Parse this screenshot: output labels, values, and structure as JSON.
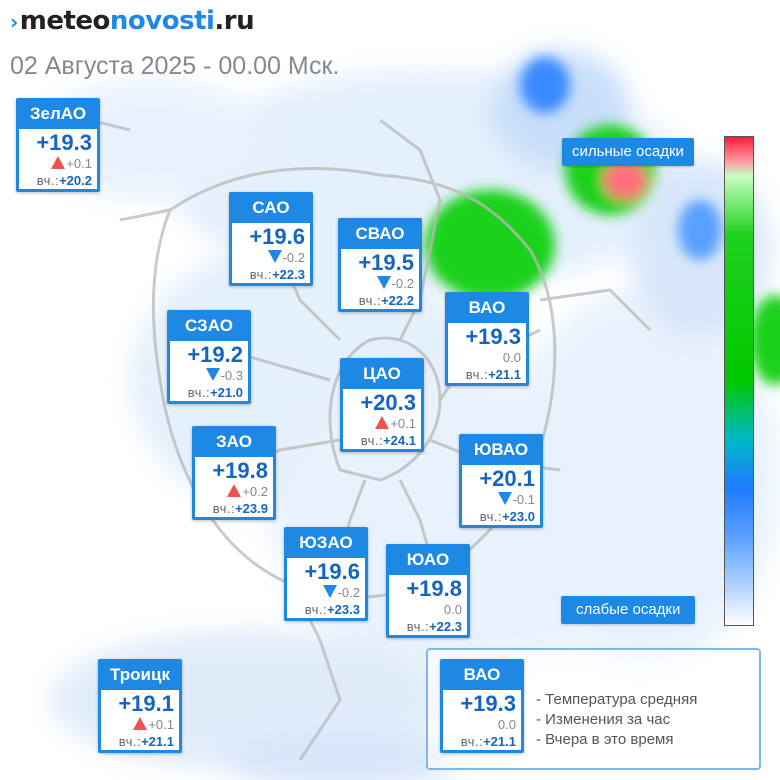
{
  "header": {
    "logo_part1": "meteo",
    "logo_part2": "novosti",
    "logo_part3": ".ru",
    "datetime": "02 Августа 2025 - 00.00 Мск."
  },
  "colors": {
    "accent": "#1e88e5",
    "up": "#ef5350",
    "down": "#1e88e5",
    "heavy": "#ff1a3c",
    "medium": "#00c800",
    "light": "#1e7bff"
  },
  "yesterday_label": "вч.:",
  "districts": [
    {
      "id": "zelao",
      "name": "ЗелАО",
      "temp": "+19.3",
      "change": "+0.1",
      "trend": "up",
      "yesterday": "+20.2"
    },
    {
      "id": "sao",
      "name": "САО",
      "temp": "+19.6",
      "change": "-0.2",
      "trend": "down",
      "yesterday": "+22.3"
    },
    {
      "id": "svao",
      "name": "СВАО",
      "temp": "+19.5",
      "change": "-0.2",
      "trend": "down",
      "yesterday": "+22.2"
    },
    {
      "id": "vao",
      "name": "ВАО",
      "temp": "+19.3",
      "change": "0.0",
      "trend": "none",
      "yesterday": "+21.1"
    },
    {
      "id": "szao",
      "name": "СЗАО",
      "temp": "+19.2",
      "change": "-0.3",
      "trend": "down",
      "yesterday": "+21.0"
    },
    {
      "id": "cao",
      "name": "ЦАО",
      "temp": "+20.3",
      "change": "+0.1",
      "trend": "up",
      "yesterday": "+24.1"
    },
    {
      "id": "zao",
      "name": "ЗАО",
      "temp": "+19.8",
      "change": "+0.2",
      "trend": "up",
      "yesterday": "+23.9"
    },
    {
      "id": "yuvao",
      "name": "ЮВАО",
      "temp": "+20.1",
      "change": "-0.1",
      "trend": "down",
      "yesterday": "+23.0"
    },
    {
      "id": "yuzao",
      "name": "ЮЗАО",
      "temp": "+19.6",
      "change": "-0.2",
      "trend": "down",
      "yesterday": "+23.3"
    },
    {
      "id": "yuao",
      "name": "ЮАО",
      "temp": "+19.8",
      "change": "0.0",
      "trend": "none",
      "yesterday": "+22.3"
    },
    {
      "id": "troitsk",
      "name": "Троицк",
      "temp": "+19.1",
      "change": "+0.1",
      "trend": "up",
      "yesterday": "+21.1"
    }
  ],
  "precip_scale": {
    "heavy_label": "сильные осадки",
    "light_label": "слабые осадки"
  },
  "legend": {
    "sample": {
      "name": "ВАО",
      "temp": "+19.3",
      "change": "0.0",
      "trend": "none",
      "yesterday": "+21.1"
    },
    "line_temp": "- Температура средняя",
    "line_change": "- Изменения за час",
    "line_yesterday": "- Вчера в это время"
  }
}
